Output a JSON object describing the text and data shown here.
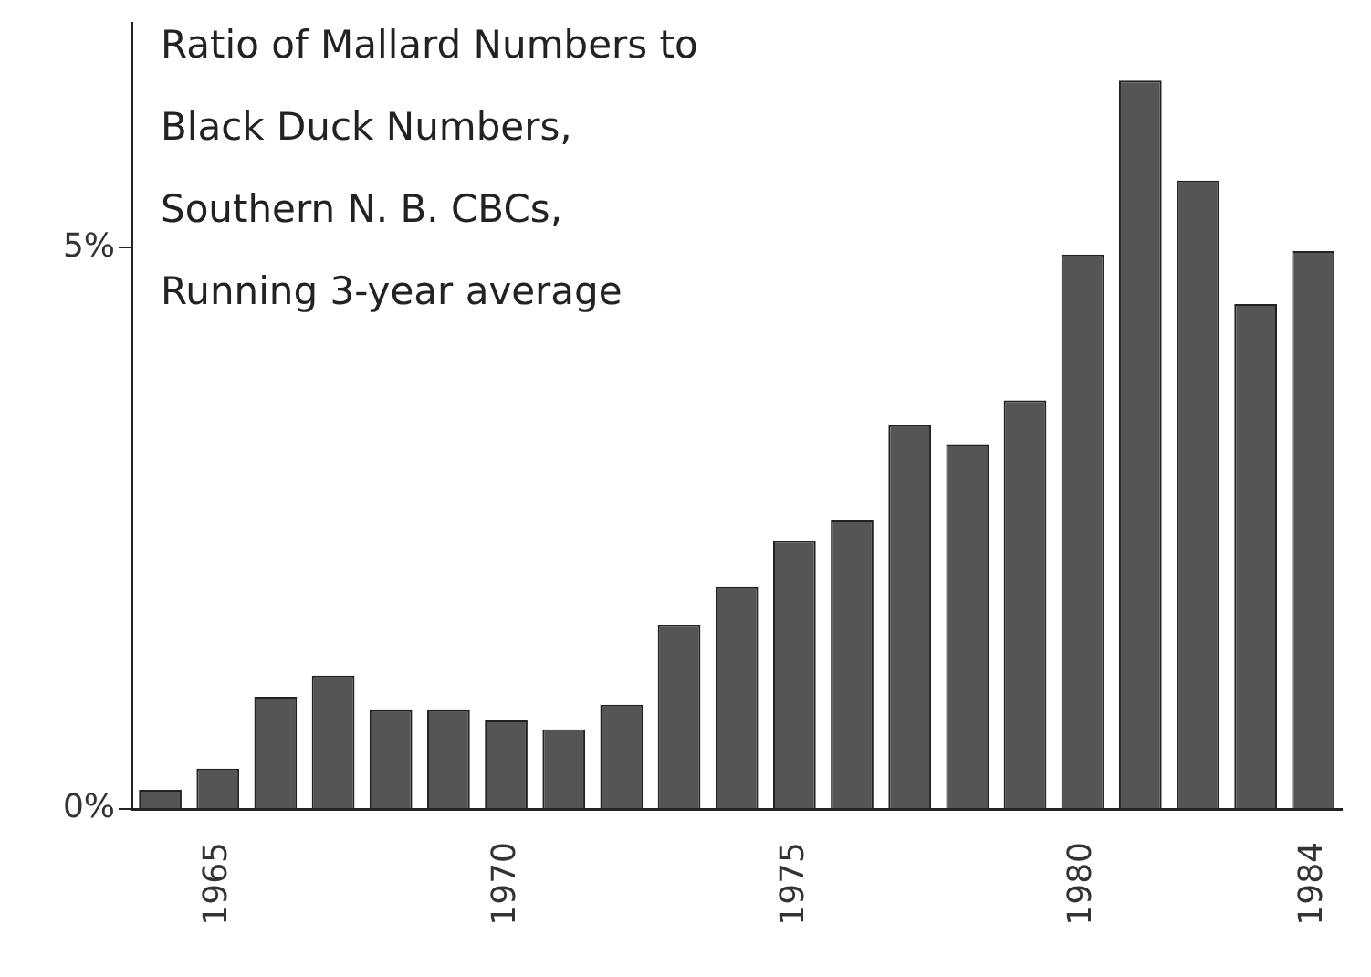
{
  "chart_data": {
    "type": "bar",
    "title": "Ratio of Mallard Numbers to\nBlack Duck Numbers,\nSouthern N. B. CBCs,\nRunning 3-year average",
    "categories": [
      null,
      "1965",
      null,
      null,
      null,
      null,
      "1970",
      null,
      null,
      null,
      null,
      "1975",
      null,
      null,
      null,
      null,
      "1980",
      null,
      null,
      null,
      "1984"
    ],
    "values": [
      0.17,
      0.36,
      1.0,
      1.19,
      0.88,
      0.88,
      0.79,
      0.71,
      0.93,
      1.64,
      1.98,
      2.39,
      2.57,
      3.42,
      3.25,
      3.64,
      4.94,
      6.49,
      5.6,
      4.5,
      4.97
    ],
    "color": "#555555",
    "ylim": [
      0,
      7
    ],
    "yticks": [
      {
        "value": 0,
        "label": "0%"
      },
      {
        "value": 5,
        "label": "5%"
      }
    ]
  }
}
